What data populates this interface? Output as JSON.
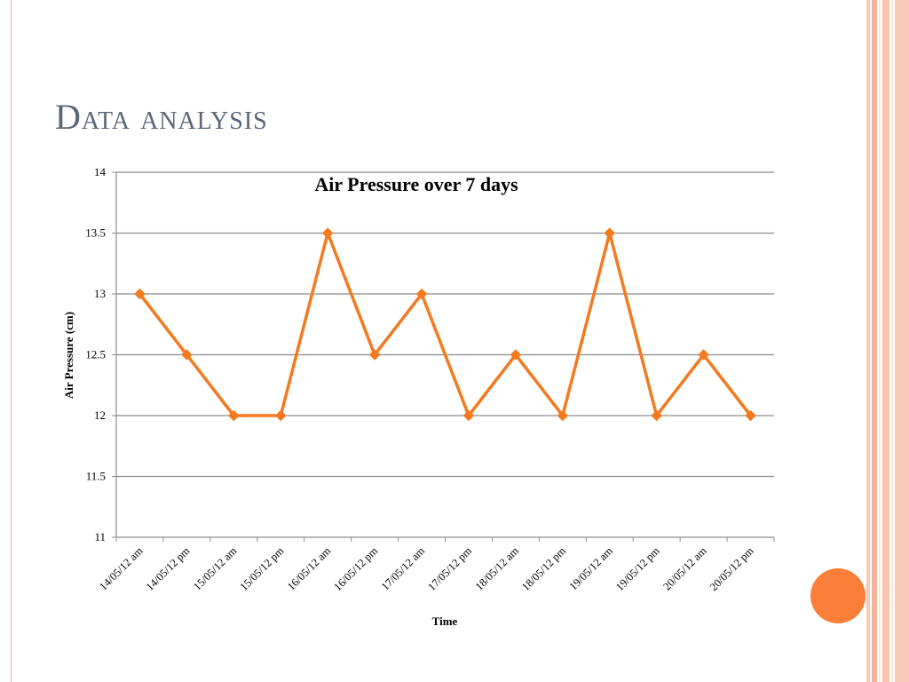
{
  "slide": {
    "title": "Data analysis",
    "accent_color": "#fb7f39",
    "title_color": "#5b6678"
  },
  "chart_data": {
    "type": "line",
    "title": "Air Pressure over 7 days",
    "xlabel": "Time",
    "ylabel": "Air Pressure (cm)",
    "ylim": [
      11,
      14
    ],
    "yticks": [
      11,
      11.5,
      12,
      12.5,
      13,
      13.5,
      14
    ],
    "grid": true,
    "legend": "none",
    "line_color": "#f4791f",
    "marker": "diamond",
    "categories": [
      "14/05/12 am",
      "14/05/12 pm",
      "15/05/12 am",
      "15/05/12 pm",
      "16/05/12 am",
      "16/05/12 pm",
      "17/05/12 am",
      "17/05/12 pm",
      "18/05/12 am",
      "18/05/12 pm",
      "19/05/12 am",
      "19/05/12 pm",
      "20/05/12 am",
      "20/05/12 pm"
    ],
    "series": [
      {
        "values": [
          13,
          12.5,
          12,
          12,
          13.5,
          12.5,
          13,
          12,
          12.5,
          12,
          13.5,
          12,
          12.5,
          12
        ]
      }
    ]
  }
}
